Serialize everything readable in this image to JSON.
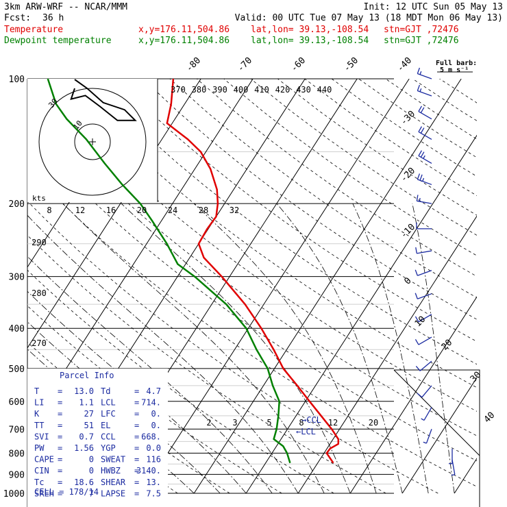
{
  "header": {
    "model": "3km ARW-WRF -- NCAR/MMM",
    "init": "Init: 12 UTC Sun 05 May 13",
    "fcst_label": "Fcst:",
    "fcst_value": "36 h",
    "valid": "Valid: 00 UTC Tue 07 May 13 (18 MDT Mon 06 May 13)",
    "full_barb_line1": "Full barb:",
    "full_barb_line2": "5 m s⁻¹"
  },
  "legend": [
    {
      "name": "Temperature",
      "color": "#e00000",
      "xy": "x,y=176.11,504.86",
      "latlon": "lat,lon= 39.13,-108.54",
      "stn": "stn=GJT ,72476"
    },
    {
      "name": "Dewpoint temperature",
      "color": "#008000",
      "xy": "x,y=176.11,504.86",
      "latlon": "lat,lon= 39.13,-108.54",
      "stn": "stn=GJT ,72476"
    }
  ],
  "parcel_info": {
    "title": "Parcel Info",
    "rows": [
      {
        "l_label": "T",
        "l_value": "13.0",
        "r_label": "Td",
        "r_value": "4.7"
      },
      {
        "l_label": "LI",
        "l_value": "1.1",
        "r_label": "LCL",
        "r_value": "714."
      },
      {
        "l_label": "K",
        "l_value": "27",
        "r_label": "LFC",
        "r_value": "0."
      },
      {
        "l_label": "TT",
        "l_value": "51",
        "r_label": "EL",
        "r_value": "0."
      },
      {
        "l_label": "SVI",
        "l_value": "0.7",
        "r_label": "CCL",
        "r_value": "668."
      },
      {
        "l_label": "PW",
        "l_value": "1.56",
        "r_label": "YGP",
        "r_value": "0.0"
      },
      {
        "l_label": "CAPE",
        "l_value": "0",
        "r_label": "SWEAT",
        "r_value": "116"
      },
      {
        "l_label": "CIN",
        "l_value": "0",
        "r_label": "HWBZ",
        "r_value": "3140."
      },
      {
        "l_label": "Tc",
        "l_value": "18.6",
        "r_label": "SHEAR",
        "r_value": "13."
      },
      {
        "l_label": "SREH",
        "l_value": "7",
        "r_label": "LAPSE",
        "r_value": "7.5"
      }
    ],
    "cell": "CELL = 178/14"
  },
  "hodograph": {
    "unit_label": "kts",
    "ring_labels": [
      "30",
      "10"
    ]
  },
  "chart_data": {
    "type": "line",
    "title": "",
    "xlabel": "",
    "ylabel": "",
    "y_scale": "log-pressure (hPa)",
    "ylim": [
      1000,
      100
    ],
    "xlim_deg_c_at_1000": [
      -42,
      40
    ],
    "pressure_ticks": [
      100,
      200,
      300,
      400,
      500,
      600,
      700,
      800,
      900,
      1000
    ],
    "isotherm_labels": [
      "-80",
      "-70",
      "-60",
      "-50",
      "-40",
      "-30",
      "-20",
      "-10",
      "0",
      "10",
      "20",
      "30",
      "40"
    ],
    "theta_labels_top": [
      "370",
      "380",
      "390",
      "400",
      "410",
      "420",
      "430",
      "440"
    ],
    "theta_labels_left": [
      "290",
      "280",
      "270"
    ],
    "mixing_ratio_labels_upper": [
      "8",
      "12",
      "16",
      "20",
      "24",
      "28",
      "32"
    ],
    "mixing_ratio_labels_lower": [
      "2",
      "3",
      "5",
      "8",
      "12",
      "20"
    ],
    "lcl_label": "LCL",
    "ccl_label": "CCL",
    "series": [
      {
        "name": "Temperature",
        "color": "#e00000",
        "points": [
          {
            "p": 845,
            "t": 13.0
          },
          {
            "p": 800,
            "t": 10.5
          },
          {
            "p": 780,
            "t": 10.6
          },
          {
            "p": 760,
            "t": 11.6
          },
          {
            "p": 740,
            "t": 11.0
          },
          {
            "p": 700,
            "t": 8.5
          },
          {
            "p": 650,
            "t": 4.8
          },
          {
            "p": 600,
            "t": 0.8
          },
          {
            "p": 550,
            "t": -3.5
          },
          {
            "p": 500,
            "t": -8.3
          },
          {
            "p": 450,
            "t": -12.5
          },
          {
            "p": 400,
            "t": -17.5
          },
          {
            "p": 350,
            "t": -23.6
          },
          {
            "p": 300,
            "t": -31.5
          },
          {
            "p": 270,
            "t": -37.3
          },
          {
            "p": 250,
            "t": -40.0
          },
          {
            "p": 230,
            "t": -40.2
          },
          {
            "p": 215,
            "t": -40.0
          },
          {
            "p": 200,
            "t": -41.3
          },
          {
            "p": 185,
            "t": -43.2
          },
          {
            "p": 165,
            "t": -47.0
          },
          {
            "p": 150,
            "t": -51.0
          },
          {
            "p": 140,
            "t": -55.0
          },
          {
            "p": 128,
            "t": -61.0
          },
          {
            "p": 115,
            "t": -62.6
          },
          {
            "p": 100,
            "t": -65.3
          }
        ]
      },
      {
        "name": "Dewpoint temperature",
        "color": "#008000",
        "points": [
          {
            "p": 845,
            "t": 4.7
          },
          {
            "p": 800,
            "t": 2.9
          },
          {
            "p": 770,
            "t": 1.3
          },
          {
            "p": 740,
            "t": -1.4
          },
          {
            "p": 700,
            "t": -2.1
          },
          {
            "p": 650,
            "t": -3.4
          },
          {
            "p": 600,
            "t": -5.0
          },
          {
            "p": 550,
            "t": -8.2
          },
          {
            "p": 500,
            "t": -11.3
          },
          {
            "p": 450,
            "t": -15.8
          },
          {
            "p": 400,
            "t": -20.4
          },
          {
            "p": 350,
            "t": -27.2
          },
          {
            "p": 300,
            "t": -36.7
          },
          {
            "p": 280,
            "t": -41.5
          },
          {
            "p": 250,
            "t": -46.1
          },
          {
            "p": 220,
            "t": -51.8
          },
          {
            "p": 200,
            "t": -56.2
          },
          {
            "p": 180,
            "t": -62.0
          },
          {
            "p": 160,
            "t": -68.0
          },
          {
            "p": 140,
            "t": -74.5
          },
          {
            "p": 125,
            "t": -80.8
          },
          {
            "p": 115,
            "t": -84.7
          },
          {
            "p": 100,
            "t": -89.4
          }
        ]
      }
    ],
    "wind_barbs": [
      {
        "p": 100,
        "dir": 290,
        "spd": 15
      },
      {
        "p": 110,
        "dir": 290,
        "spd": 15
      },
      {
        "p": 125,
        "dir": 300,
        "spd": 20
      },
      {
        "p": 140,
        "dir": 300,
        "spd": 20
      },
      {
        "p": 160,
        "dir": 300,
        "spd": 25
      },
      {
        "p": 180,
        "dir": 290,
        "spd": 25
      },
      {
        "p": 200,
        "dir": 280,
        "spd": 15
      },
      {
        "p": 230,
        "dir": 270,
        "spd": 10
      },
      {
        "p": 260,
        "dir": 260,
        "spd": 10
      },
      {
        "p": 290,
        "dir": 250,
        "spd": 10
      },
      {
        "p": 330,
        "dir": 250,
        "spd": 10
      },
      {
        "p": 370,
        "dir": 240,
        "spd": 10
      },
      {
        "p": 420,
        "dir": 240,
        "spd": 10
      },
      {
        "p": 480,
        "dir": 230,
        "spd": 10
      },
      {
        "p": 550,
        "dir": 220,
        "spd": 10
      },
      {
        "p": 620,
        "dir": 210,
        "spd": 5
      },
      {
        "p": 700,
        "dir": 200,
        "spd": 5
      },
      {
        "p": 780,
        "dir": 180,
        "spd": 5
      },
      {
        "p": 830,
        "dir": 170,
        "spd": 5
      }
    ],
    "hodograph_trace": [
      {
        "u": -10,
        "v": 35
      },
      {
        "u": -3,
        "v": 30
      },
      {
        "u": 6,
        "v": 22
      },
      {
        "u": 18,
        "v": 18
      },
      {
        "u": 24,
        "v": 12
      },
      {
        "u": 14,
        "v": 12
      },
      {
        "u": 4,
        "v": 20
      },
      {
        "u": -4,
        "v": 26
      },
      {
        "u": -12,
        "v": 24
      },
      {
        "u": -10,
        "v": 30
      }
    ],
    "grid": true
  }
}
